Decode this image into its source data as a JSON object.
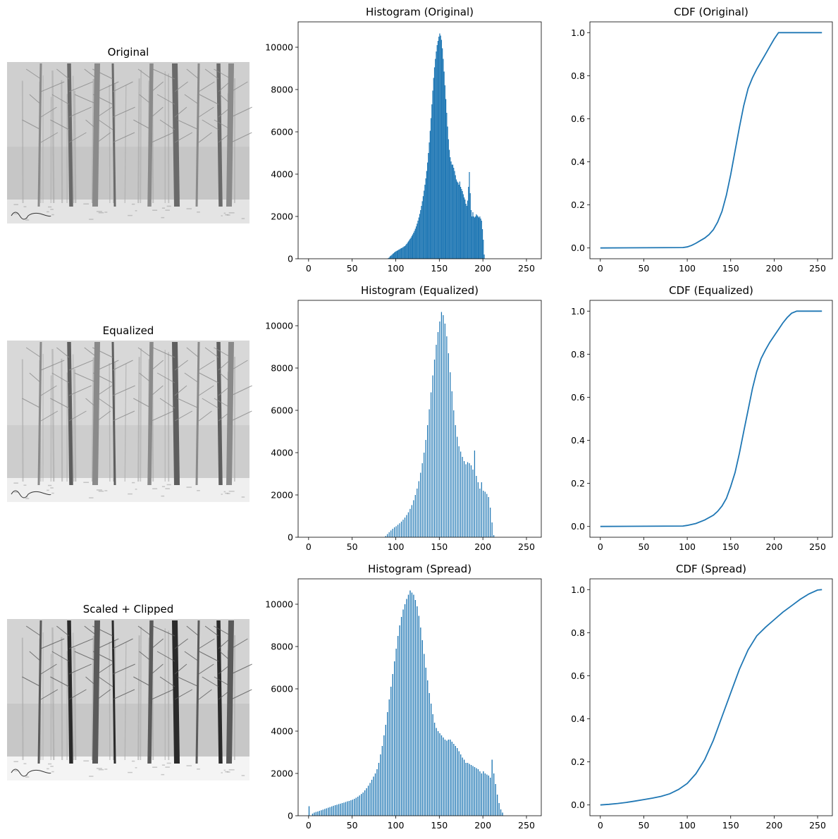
{
  "chart_data": [
    {
      "type": "image",
      "title": "Original",
      "image": "winter-forest-photo",
      "tone": "original"
    },
    {
      "type": "bar",
      "title": "Histogram (Original)",
      "xlim": [
        -12,
        267
      ],
      "ylim": [
        0,
        11200
      ],
      "xticks": [
        0,
        50,
        100,
        150,
        200,
        250
      ],
      "yticks": [
        0,
        2000,
        4000,
        6000,
        8000,
        10000
      ],
      "bar_style": "dense",
      "bins": {
        "x_start": 90,
        "x_step": 1,
        "values": [
          0,
          30,
          60,
          120,
          150,
          180,
          230,
          260,
          300,
          330,
          360,
          380,
          400,
          430,
          450,
          480,
          500,
          520,
          550,
          580,
          600,
          650,
          700,
          760,
          820,
          880,
          940,
          1000,
          1080,
          1150,
          1230,
          1320,
          1420,
          1530,
          1660,
          1800,
          1950,
          2120,
          2300,
          2500,
          2720,
          2960,
          3220,
          3500,
          3800,
          4150,
          4550,
          5000,
          5500,
          6050,
          6650,
          7300,
          7950,
          8550,
          9050,
          9450,
          9800,
          10100,
          10300,
          10500,
          10650,
          10550,
          10350,
          9950,
          9450,
          8850,
          8200,
          7550,
          6900,
          6250,
          5650,
          5150,
          4800,
          4600,
          4450,
          4450,
          4300,
          4150,
          3950,
          3750,
          3650,
          3600,
          3500,
          3650,
          3400,
          3300,
          3200,
          3050,
          2900,
          2800,
          2600,
          2500,
          2750,
          3400,
          4100,
          3100,
          2300,
          2000,
          2200,
          2000,
          1950,
          2000,
          2100,
          2050,
          2000,
          1950,
          2000,
          1900,
          1800,
          1400,
          900,
          200,
          0
        ]
      }
    },
    {
      "type": "line",
      "title": "CDF (Original)",
      "xlim": [
        -12,
        267
      ],
      "ylim": [
        -0.05,
        1.05
      ],
      "xticks": [
        0,
        50,
        100,
        150,
        200,
        250
      ],
      "yticks": [
        "0.0",
        "0.2",
        "0.4",
        "0.6",
        "0.8",
        "1.0"
      ],
      "color": "#1f77b4",
      "x": [
        0,
        95,
        100,
        105,
        110,
        115,
        120,
        125,
        130,
        135,
        140,
        145,
        150,
        155,
        160,
        165,
        170,
        175,
        180,
        185,
        190,
        195,
        200,
        205,
        255
      ],
      "y": [
        0,
        0.002,
        0.005,
        0.012,
        0.022,
        0.034,
        0.046,
        0.062,
        0.085,
        0.12,
        0.17,
        0.245,
        0.34,
        0.45,
        0.56,
        0.66,
        0.74,
        0.79,
        0.83,
        0.865,
        0.9,
        0.935,
        0.97,
        1.0,
        1.0
      ]
    },
    {
      "type": "image",
      "title": "Equalized",
      "image": "winter-forest-photo",
      "tone": "equalized"
    },
    {
      "type": "bar",
      "title": "Histogram (Equalized)",
      "xlim": [
        -12,
        267
      ],
      "ylim": [
        0,
        11200
      ],
      "xticks": [
        0,
        50,
        100,
        150,
        200,
        250
      ],
      "yticks": [
        0,
        2000,
        4000,
        6000,
        8000,
        10000
      ],
      "bar_style": "combed",
      "bins": {
        "x_start": 88,
        "x_step": 1,
        "values": [
          60,
          0,
          150,
          0,
          240,
          0,
          320,
          0,
          400,
          0,
          470,
          0,
          520,
          0,
          590,
          0,
          660,
          0,
          740,
          0,
          830,
          0,
          930,
          0,
          1050,
          0,
          1180,
          0,
          1340,
          0,
          1520,
          0,
          1750,
          0,
          2000,
          0,
          2300,
          0,
          2650,
          0,
          3050,
          0,
          3500,
          0,
          4000,
          0,
          4600,
          0,
          5300,
          0,
          6050,
          0,
          6850,
          0,
          7650,
          0,
          8400,
          0,
          9100,
          0,
          9700,
          0,
          10200,
          0,
          10650,
          0,
          10500,
          0,
          10100,
          0,
          9500,
          0,
          8700,
          0,
          7800,
          0,
          6900,
          0,
          6000,
          0,
          5300,
          0,
          4750,
          0,
          4300,
          0,
          4050,
          0,
          3800,
          0,
          3600,
          0,
          3450,
          0,
          3550,
          0,
          3500,
          0,
          3400,
          0,
          3200,
          0,
          4100,
          0,
          2900,
          0,
          2600,
          0,
          2300,
          0,
          2600,
          0,
          2200,
          0,
          2150,
          0,
          2050,
          0,
          1900,
          0,
          1400,
          0,
          700,
          0,
          100,
          0
        ]
      }
    },
    {
      "type": "line",
      "title": "CDF (Equalized)",
      "xlim": [
        -12,
        267
      ],
      "ylim": [
        -0.05,
        1.05
      ],
      "xticks": [
        0,
        50,
        100,
        150,
        200,
        250
      ],
      "yticks": [
        "0.0",
        "0.2",
        "0.4",
        "0.6",
        "0.8",
        "1.0"
      ],
      "color": "#1f77b4",
      "x": [
        0,
        95,
        100,
        110,
        120,
        130,
        135,
        140,
        145,
        150,
        155,
        160,
        165,
        170,
        175,
        180,
        185,
        190,
        195,
        200,
        205,
        210,
        215,
        220,
        226,
        230,
        255
      ],
      "y": [
        0,
        0.002,
        0.005,
        0.014,
        0.03,
        0.052,
        0.07,
        0.095,
        0.13,
        0.185,
        0.25,
        0.34,
        0.44,
        0.54,
        0.64,
        0.72,
        0.78,
        0.82,
        0.855,
        0.885,
        0.915,
        0.945,
        0.97,
        0.99,
        1.0,
        1.0,
        1.0
      ]
    },
    {
      "type": "image",
      "title": "Scaled + Clipped",
      "image": "winter-forest-photo",
      "tone": "scaled-clipped"
    },
    {
      "type": "bar",
      "title": "Histogram (Spread)",
      "xlim": [
        -12,
        267
      ],
      "ylim": [
        0,
        11200
      ],
      "xticks": [
        0,
        50,
        100,
        150,
        200,
        250
      ],
      "yticks": [
        0,
        2000,
        4000,
        6000,
        8000,
        10000
      ],
      "bar_style": "spread",
      "bins": {
        "x_start": 0,
        "x_step": 2,
        "values": [
          450,
          0,
          100,
          150,
          180,
          200,
          230,
          260,
          290,
          320,
          350,
          380,
          410,
          440,
          470,
          500,
          520,
          550,
          570,
          600,
          620,
          650,
          680,
          700,
          730,
          760,
          800,
          850,
          900,
          960,
          1030,
          1100,
          1200,
          1300,
          1420,
          1550,
          1700,
          1850,
          2000,
          2200,
          2500,
          2900,
          3300,
          3800,
          4300,
          4900,
          5500,
          6100,
          6700,
          7300,
          7900,
          8500,
          9000,
          9400,
          9750,
          10000,
          10250,
          10450,
          10650,
          10550,
          10450,
          10200,
          9900,
          9450,
          8900,
          8300,
          7650,
          7000,
          6400,
          5800,
          5300,
          4800,
          4400,
          4150,
          4000,
          3900,
          3800,
          3700,
          3600,
          3550,
          3600,
          3600,
          3500,
          3400,
          3300,
          3200,
          3050,
          2900,
          2750,
          2650,
          2500,
          2500,
          2450,
          2400,
          2350,
          2300,
          2250,
          2200,
          2100,
          2000,
          2100,
          2000,
          1950,
          1900,
          1800,
          2650,
          2000,
          1500,
          1000,
          600,
          300,
          150,
          0
        ]
      }
    },
    {
      "type": "line",
      "title": "CDF (Spread)",
      "xlim": [
        -12,
        267
      ],
      "ylim": [
        -0.05,
        1.05
      ],
      "xticks": [
        0,
        50,
        100,
        150,
        200,
        250
      ],
      "yticks": [
        "0.0",
        "0.2",
        "0.4",
        "0.6",
        "0.8",
        "1.0"
      ],
      "color": "#1f77b4",
      "x": [
        0,
        10,
        20,
        30,
        40,
        50,
        60,
        70,
        80,
        90,
        100,
        110,
        120,
        130,
        140,
        150,
        160,
        170,
        180,
        190,
        200,
        210,
        220,
        230,
        240,
        250,
        255
      ],
      "y": [
        0,
        0.003,
        0.007,
        0.012,
        0.018,
        0.025,
        0.032,
        0.04,
        0.052,
        0.072,
        0.1,
        0.145,
        0.21,
        0.3,
        0.41,
        0.52,
        0.63,
        0.72,
        0.785,
        0.825,
        0.86,
        0.895,
        0.925,
        0.955,
        0.98,
        0.998,
        1.0
      ]
    }
  ]
}
